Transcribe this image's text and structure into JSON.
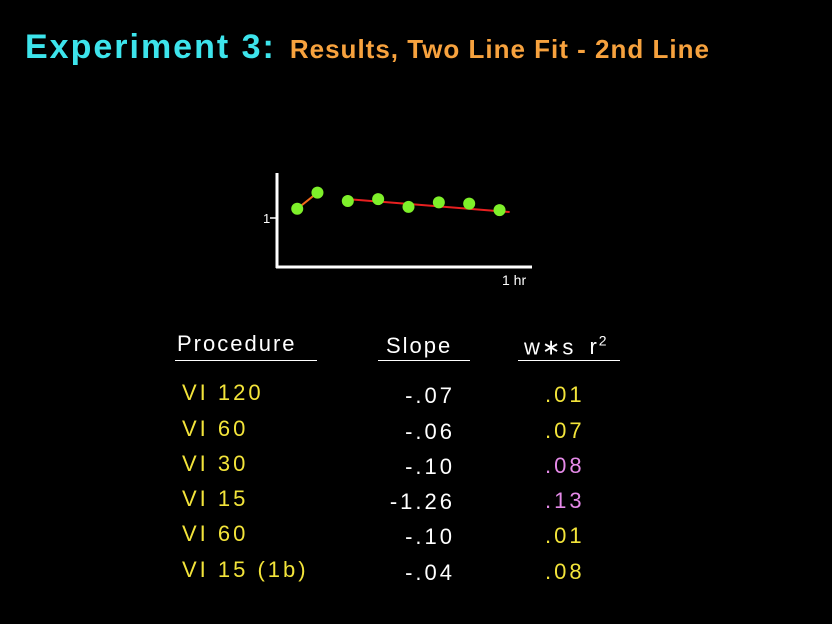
{
  "slide": {
    "title_main": "Experiment 3:",
    "title_sub": "Results, Two Line Fit - 2nd Line"
  },
  "chart_data": {
    "type": "scatter",
    "ytick_label": "1",
    "xtick_label": "1 hr",
    "points": [
      {
        "x": 0.1,
        "y": 0.9
      },
      {
        "x": 0.2,
        "y": 1.15
      },
      {
        "x": 0.35,
        "y": 1.02
      },
      {
        "x": 0.5,
        "y": 1.05
      },
      {
        "x": 0.65,
        "y": 0.93
      },
      {
        "x": 0.8,
        "y": 1.0
      },
      {
        "x": 0.95,
        "y": 0.98
      },
      {
        "x": 1.1,
        "y": 0.88
      }
    ],
    "lines": [
      {
        "name": "1st line",
        "color": "#f36a1a",
        "x": [
          0.1,
          0.2
        ],
        "y": [
          0.9,
          1.15
        ]
      },
      {
        "name": "2nd line",
        "color": "#e82020",
        "x": [
          0.35,
          1.15
        ],
        "y": [
          1.05,
          0.85
        ]
      }
    ],
    "point_color": "#7ef02a",
    "xlim": [
      0,
      1.3
    ],
    "ylim": [
      0,
      1.5
    ]
  },
  "table": {
    "headers": {
      "procedure": "Procedure",
      "slope": "Slope",
      "wsr": "w∗s",
      "r2": "r",
      "r2_sup": "2"
    },
    "rows": [
      {
        "procedure": "VI 120",
        "slope": "-.07",
        "r2": ".01",
        "r2_color": "#f3e43a"
      },
      {
        "procedure": "VI 60",
        "slope": "-.06",
        "r2": ".07",
        "r2_color": "#f3e43a"
      },
      {
        "procedure": "VI 30",
        "slope": "-.10",
        "r2": ".08",
        "r2_color": "#e58ae8"
      },
      {
        "procedure": "VI 15",
        "slope": "-1.26",
        "r2": ".13",
        "r2_color": "#e58ae8"
      },
      {
        "procedure": "VI 60",
        "slope": "-.10",
        "r2": ".01",
        "r2_color": "#f3e43a"
      },
      {
        "procedure": "VI 15 (1b)",
        "slope": "-.04",
        "r2": ".08",
        "r2_color": "#f3e43a"
      }
    ]
  },
  "colors": {
    "background": "#000000",
    "title_main": "#3de4ec",
    "title_sub": "#f7a23e",
    "procedure_text": "#f3e43a",
    "header_text": "#ffffff"
  }
}
